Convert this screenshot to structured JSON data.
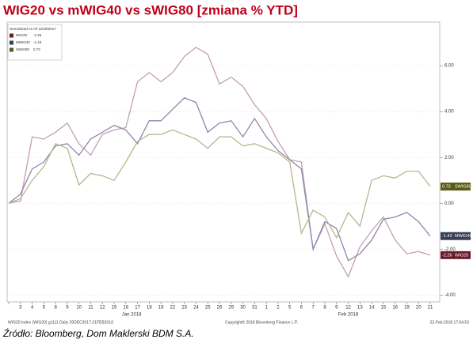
{
  "chart_data": {
    "type": "line",
    "title": "WIG20 vs mWIG40 vs sWIG80 [zmiana % YTD]",
    "legend_title": "Normalized As Of 12/29/2017",
    "legend": "upper left",
    "categories": [
      null,
      "3",
      "4",
      "5",
      "8",
      "9",
      "10",
      "11",
      "12",
      "15",
      "16",
      "17",
      "18",
      "19",
      "22",
      "23",
      "24",
      "25",
      "26",
      "29",
      "30",
      "31",
      "1",
      "2",
      "5",
      "6",
      "7",
      "8",
      "9",
      "12",
      "13",
      "14",
      "15",
      "16",
      "19",
      "20",
      "21"
    ],
    "months": [
      {
        "label": "Jan 2018",
        "start": 0
      },
      {
        "label": "Feb 2018",
        "start": 22
      }
    ],
    "series": [
      {
        "name": "WIG20",
        "color": "#c4a0ad",
        "label_color": "#6b1a2a",
        "values": [
          0,
          0.1,
          2.9,
          2.8,
          3.1,
          3.5,
          2.6,
          2.1,
          3.0,
          3.2,
          3.3,
          5.3,
          5.7,
          5.3,
          5.7,
          6.4,
          6.8,
          6.5,
          5.2,
          5.5,
          5.1,
          4.3,
          3.7,
          2.7,
          1.9,
          1.8,
          -2.0,
          -0.9,
          -2.3,
          -3.2,
          -1.9,
          -1.2,
          -0.6,
          -1.6,
          -2.2,
          -2.1,
          -2.26
        ]
      },
      {
        "name": "MWIG40",
        "color": "#8d87ad",
        "label_color": "#3a3f58",
        "values": [
          0,
          0.4,
          1.5,
          1.8,
          2.5,
          2.6,
          2.1,
          2.8,
          3.1,
          3.4,
          3.2,
          2.6,
          3.6,
          3.6,
          4.1,
          4.6,
          4.4,
          3.1,
          3.5,
          3.6,
          2.9,
          3.7,
          2.9,
          2.3,
          1.9,
          1.5,
          -2.0,
          -0.8,
          -1.1,
          -2.5,
          -2.2,
          -1.6,
          -0.7,
          -0.6,
          -0.4,
          -0.8,
          -1.43
        ]
      },
      {
        "name": "SWIG80",
        "color": "#b8b68e",
        "label_color": "#5a5a1a",
        "values": [
          0,
          0.2,
          1.0,
          1.6,
          2.6,
          2.4,
          0.8,
          1.3,
          1.2,
          1.0,
          1.8,
          2.7,
          3.0,
          3.0,
          3.2,
          3.0,
          2.8,
          2.4,
          2.9,
          2.9,
          2.5,
          2.6,
          2.4,
          2.2,
          1.8,
          -1.3,
          -0.3,
          -0.6,
          -1.5,
          -0.4,
          -1.0,
          1.0,
          1.2,
          1.1,
          1.4,
          1.4,
          0.73
        ]
      }
    ],
    "ylim": [
      -4.3,
      7.9
    ],
    "yticks": [
      {
        "value": -4,
        "label": "-4.00"
      },
      {
        "value": -2,
        "label": "-2.00"
      },
      {
        "value": 0,
        "label": "0.00"
      },
      {
        "value": 2,
        "label": "2.00"
      },
      {
        "value": 4,
        "label": "4.00"
      },
      {
        "value": 6,
        "label": "6.00"
      }
    ],
    "grid": true,
    "footer_left": "WIG20 Index (WIG20) g1111  Daily 29DEC2017-21FEB2018",
    "footer_center": "Copyright® 2018 Bloomberg Finance L.P.",
    "footer_right": "22-Feb-2018 17:04:53",
    "source": "Źródło: Bloomberg, Dom Maklerski BDM S.A."
  }
}
